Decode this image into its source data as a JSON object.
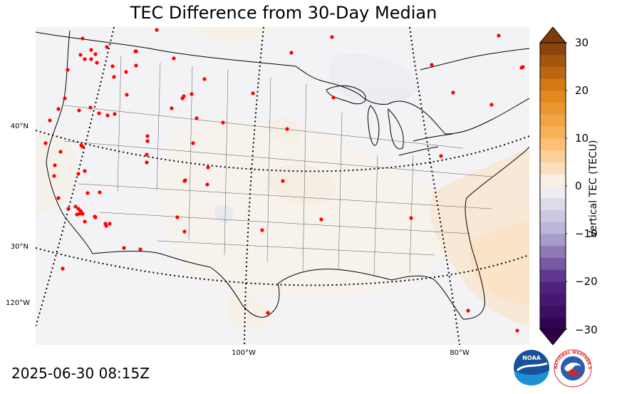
{
  "title": "TEC Difference from 30-Day Median",
  "timestamp": "2025-06-30 08:15Z",
  "map": {
    "lat_labels": [
      "40°N",
      "30°N"
    ],
    "lon_labels": [
      "120°W",
      "100°W",
      "80°W"
    ],
    "station_color": "#ff0000"
  },
  "colorbar": {
    "label": "Vertical TEC (TECU)",
    "ticks": [
      "30",
      "20",
      "10",
      "0",
      "−10",
      "−20",
      "−30"
    ],
    "min": -30,
    "max": 30,
    "step": 2.5
  },
  "logos": {
    "noaa": "NOAA",
    "nws": "NATIONAL WEATHER SERVICE"
  }
}
